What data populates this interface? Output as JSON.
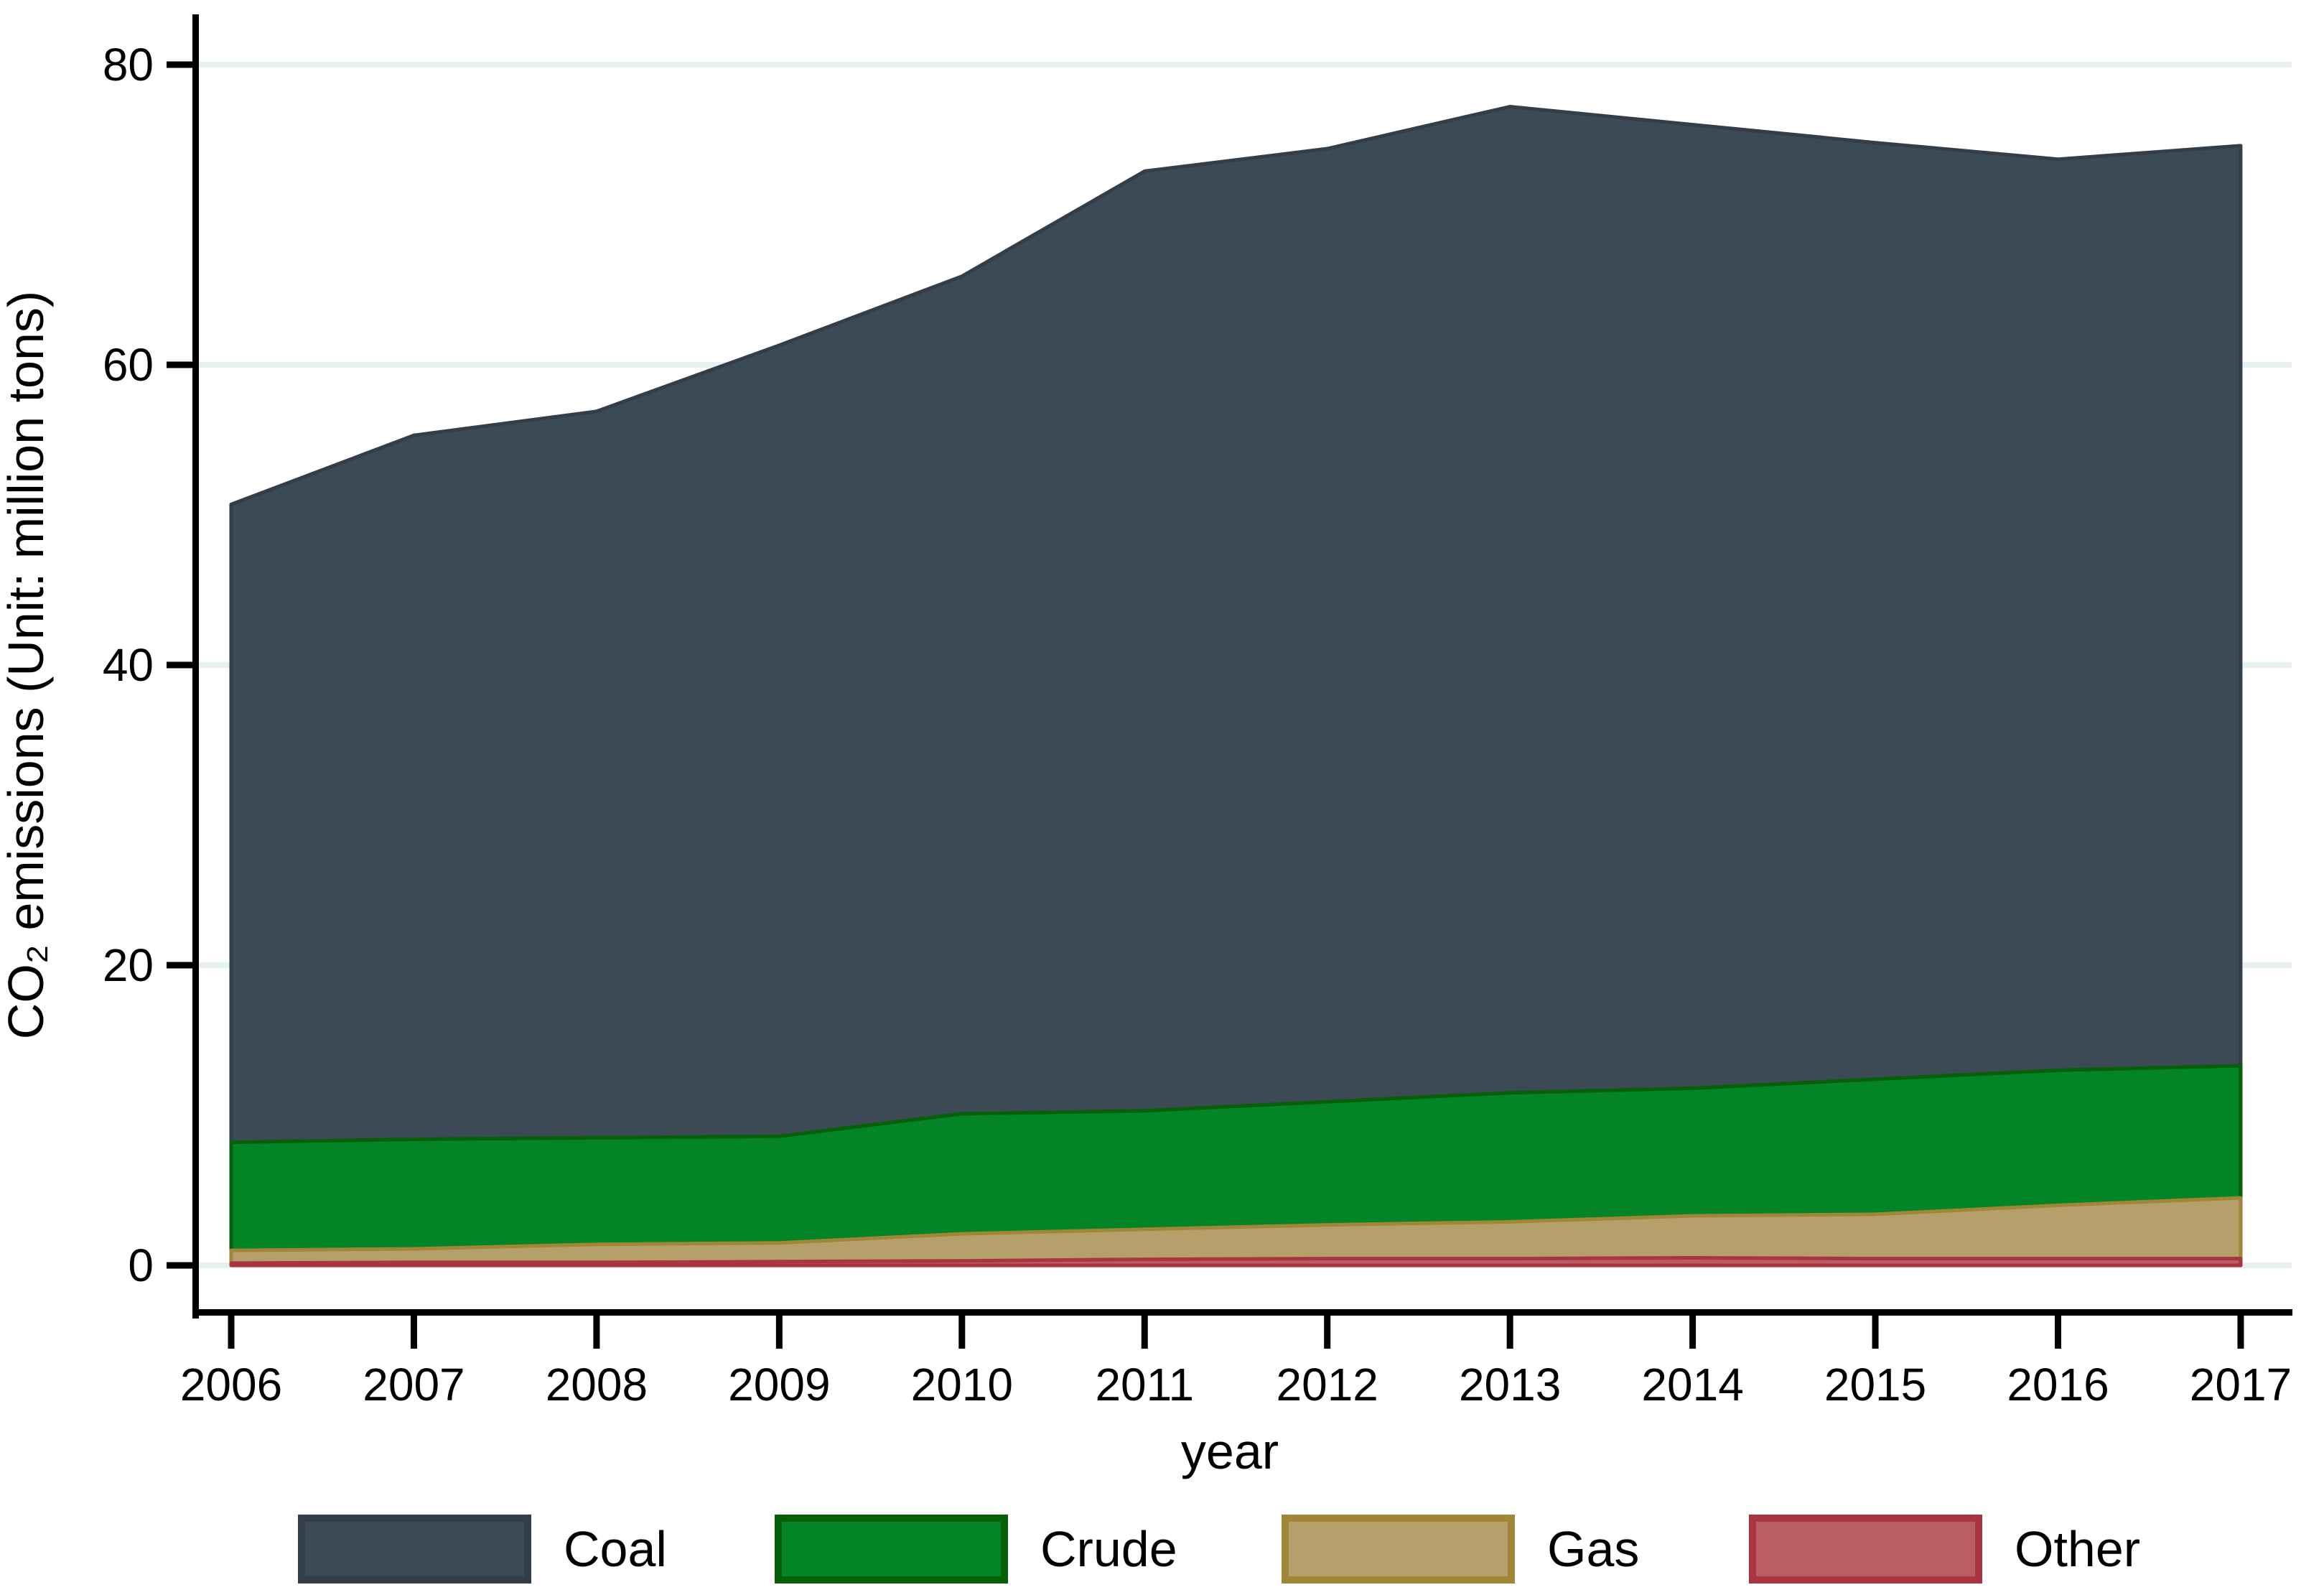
{
  "chart_data": {
    "type": "area",
    "stacked": true,
    "title": "",
    "xlabel": "year",
    "ylabel": "CO₂ emissions (Unit: million tons)",
    "units": "million tons",
    "x": [
      2006,
      2007,
      2008,
      2009,
      2010,
      2011,
      2012,
      2013,
      2014,
      2015,
      2016,
      2017
    ],
    "series": [
      {
        "name": "Coal",
        "fill": "#3b4a55",
        "border": "#333e48",
        "values": [
          42.5,
          46.9,
          48.4,
          52.7,
          55.8,
          62.6,
          63.5,
          65.7,
          64.2,
          62.4,
          60.7,
          61.3
        ]
      },
      {
        "name": "Crude",
        "fill": "#038427",
        "border": "#075f07",
        "values": [
          7.2,
          7.3,
          7.1,
          7.1,
          8.0,
          7.9,
          8.2,
          8.6,
          8.5,
          9.0,
          9.0,
          8.8
        ]
      },
      {
        "name": "Gas",
        "fill": "#b5a06b",
        "border": "#a08636",
        "values": [
          0.85,
          0.9,
          1.2,
          1.25,
          1.8,
          2.0,
          2.25,
          2.45,
          2.8,
          2.95,
          3.55,
          4.05
        ]
      },
      {
        "name": "Other",
        "fill": "#b85f66",
        "border": "#a93540",
        "values": [
          0.15,
          0.2,
          0.2,
          0.25,
          0.3,
          0.4,
          0.45,
          0.45,
          0.5,
          0.45,
          0.45,
          0.45
        ]
      }
    ],
    "stack_order_bottom_to_top": [
      "Other",
      "Gas",
      "Crude",
      "Coal"
    ],
    "totals_by_year": [
      50.7,
      55.3,
      56.9,
      61.3,
      65.9,
      72.9,
      74.4,
      77.2,
      76.0,
      74.8,
      73.7,
      74.6
    ],
    "ylim": [
      0,
      80
    ],
    "yticks": [
      0,
      20,
      40,
      60,
      80
    ],
    "y_tick_labels": [
      "0",
      "20",
      "40",
      "60",
      "80"
    ],
    "x_tick_labels": [
      "2006",
      "2007",
      "2008",
      "2009",
      "2010",
      "2011",
      "2012",
      "2013",
      "2014",
      "2015",
      "2016",
      "2017"
    ],
    "grid": true,
    "grid_color": "#e7f1f2",
    "legend_position": "bottom",
    "legend_labels": [
      "Coal",
      "Crude",
      "Gas",
      "Other"
    ]
  }
}
